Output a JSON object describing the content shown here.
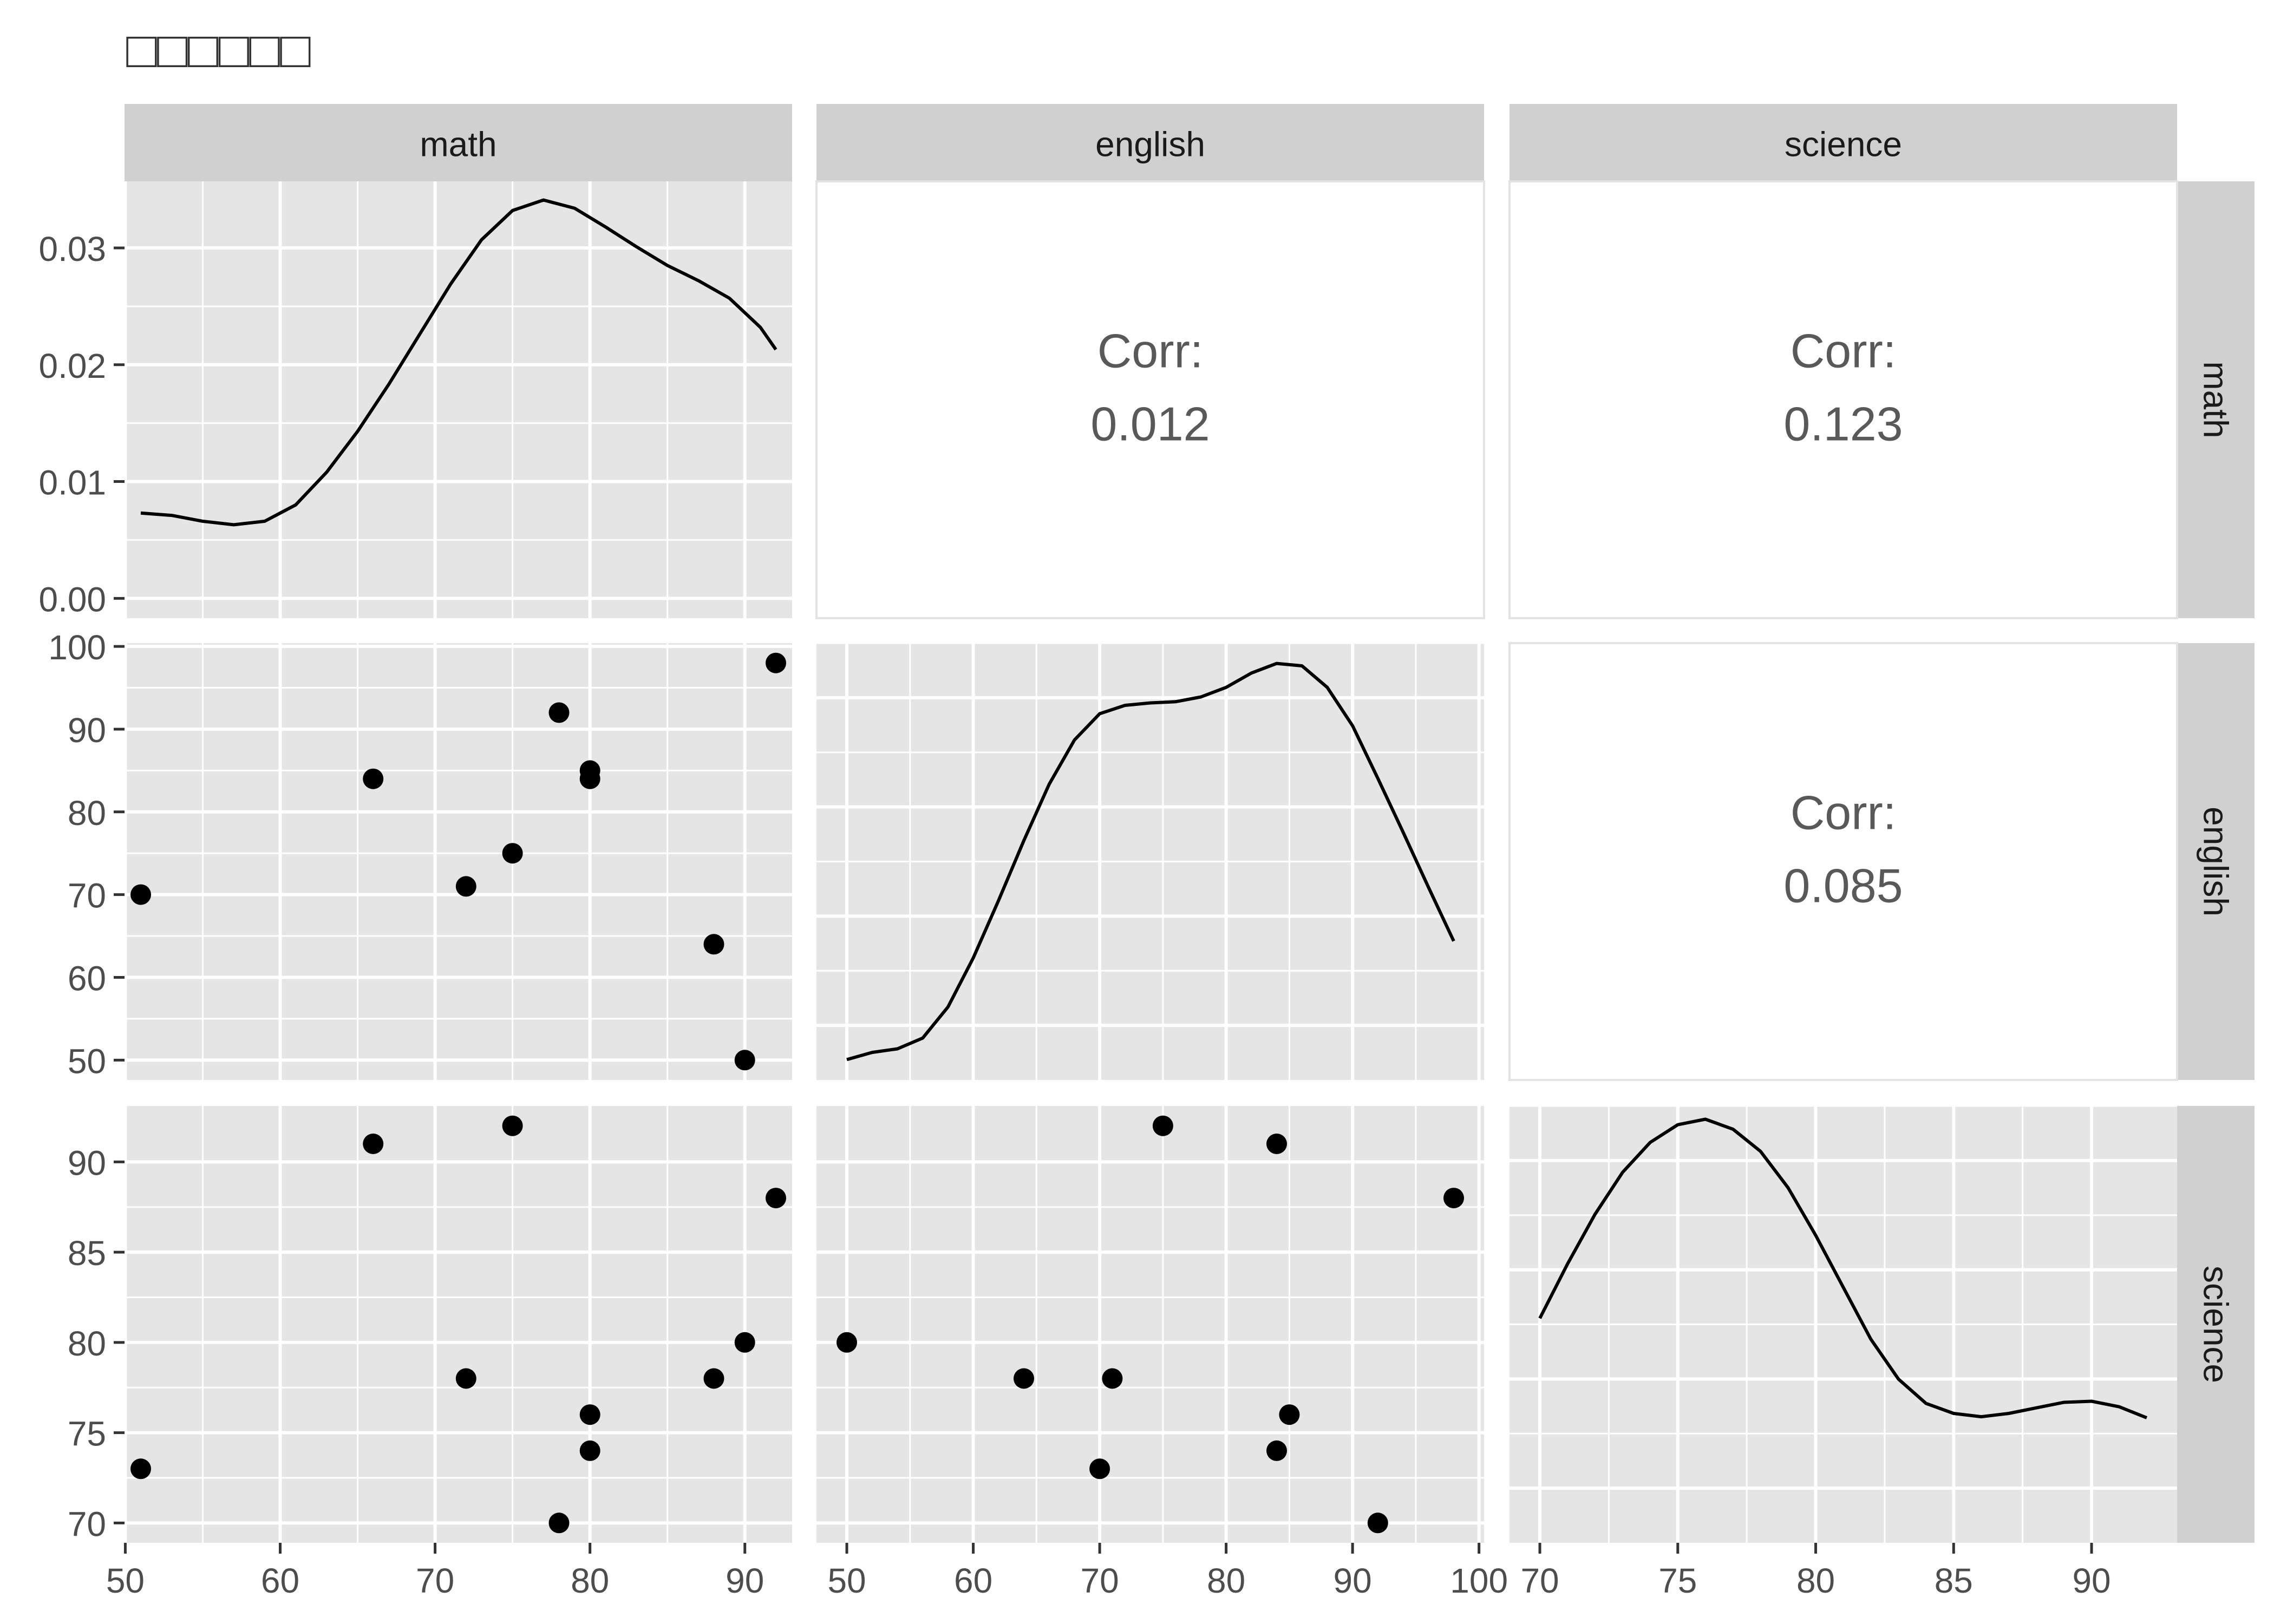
{
  "title": "□□□□□□",
  "variables": [
    "math",
    "english",
    "science"
  ],
  "colors": {
    "panel_bg": "#e5e5e5",
    "grid": "#ffffff",
    "strip_bg": "#d0d0d0",
    "strip_text": "#1a1a1a",
    "axis_text": "#4d4d4d",
    "corr_text": "#595959",
    "ink": "#000000"
  },
  "chart_data": {
    "type": "scatter",
    "kind": "pairs-plot-matrix",
    "observations": {
      "math": [
        51,
        66,
        72,
        75,
        78,
        80,
        80,
        88,
        90,
        92
      ],
      "english": [
        70,
        84,
        71,
        75,
        92,
        85,
        84,
        64,
        50,
        98
      ],
      "science": [
        73,
        91,
        78,
        92,
        70,
        76,
        74,
        78,
        80,
        88
      ]
    },
    "axes": {
      "x": {
        "math": {
          "range": [
            49.95,
            93.05
          ],
          "ticks": [
            50,
            60,
            70,
            80,
            90
          ]
        },
        "english": {
          "range": [
            47.6,
            100.4
          ],
          "ticks": [
            50,
            60,
            70,
            80,
            90,
            100
          ]
        },
        "science": {
          "range": [
            68.9,
            93.1
          ],
          "ticks": [
            70,
            75,
            80,
            85,
            90
          ]
        }
      },
      "y": {
        "math": {
          "range": [
            -0.0017,
            0.0357
          ],
          "ticks": [
            0.0,
            0.01,
            0.02,
            0.03
          ],
          "tick_labels": [
            "0.00",
            "0.01",
            "0.02",
            "0.03"
          ]
        },
        "english": {
          "range": [
            47.6,
            100.4
          ],
          "ticks": [
            50,
            60,
            70,
            80,
            90,
            100
          ]
        },
        "science": {
          "range": [
            68.9,
            93.1
          ],
          "ticks": [
            70,
            75,
            80,
            85,
            90
          ]
        }
      }
    },
    "densities": {
      "math": {
        "x": [
          51,
          53,
          55,
          57,
          59,
          61,
          63,
          65,
          67,
          69,
          71,
          73,
          75,
          77,
          79,
          81,
          83,
          85,
          87,
          89,
          91,
          92
        ],
        "y": [
          0.0073,
          0.0071,
          0.0066,
          0.0063,
          0.0066,
          0.008,
          0.0108,
          0.0143,
          0.0183,
          0.0226,
          0.0269,
          0.0307,
          0.0332,
          0.0341,
          0.0334,
          0.0318,
          0.0301,
          0.0285,
          0.0272,
          0.0257,
          0.0232,
          0.0213
        ]
      },
      "english": {
        "x": [
          50,
          52,
          54,
          56,
          58,
          60,
          62,
          64,
          66,
          68,
          70,
          72,
          74,
          76,
          78,
          80,
          82,
          84,
          86,
          88,
          90,
          92,
          94,
          96,
          98
        ],
        "y": [
          0.0159,
          0.0165,
          0.0168,
          0.0177,
          0.0203,
          0.0244,
          0.0292,
          0.0342,
          0.0389,
          0.0426,
          0.0448,
          0.0455,
          0.0457,
          0.0458,
          0.0462,
          0.047,
          0.0482,
          0.049,
          0.0488,
          0.047,
          0.0438,
          0.0394,
          0.0349,
          0.0303,
          0.0258
        ]
      },
      "science": {
        "x": [
          70,
          71,
          72,
          73,
          74,
          75,
          76,
          77,
          78,
          79,
          80,
          81,
          82,
          83,
          84,
          85,
          86,
          87,
          88,
          89,
          90,
          91,
          92
        ],
        "y": [
          0.0275,
          0.0324,
          0.0369,
          0.0407,
          0.0434,
          0.045,
          0.0455,
          0.0446,
          0.0426,
          0.0393,
          0.035,
          0.0303,
          0.0256,
          0.022,
          0.0198,
          0.0189,
          0.0186,
          0.0189,
          0.0194,
          0.0199,
          0.02,
          0.0195,
          0.0185
        ]
      }
    },
    "density_axis_range": {
      "math": [
        -0.0017,
        0.0357
      ],
      "english": [
        0.0142,
        0.0507
      ],
      "science": [
        0.0072,
        0.0467
      ]
    },
    "correlations": [
      {
        "row": "math",
        "col": "english",
        "label": "Corr:",
        "value": "0.012"
      },
      {
        "row": "math",
        "col": "science",
        "label": "Corr:",
        "value": "0.123"
      },
      {
        "row": "english",
        "col": "science",
        "label": "Corr:",
        "value": "0.085"
      }
    ],
    "grid": true,
    "legend": "none"
  }
}
